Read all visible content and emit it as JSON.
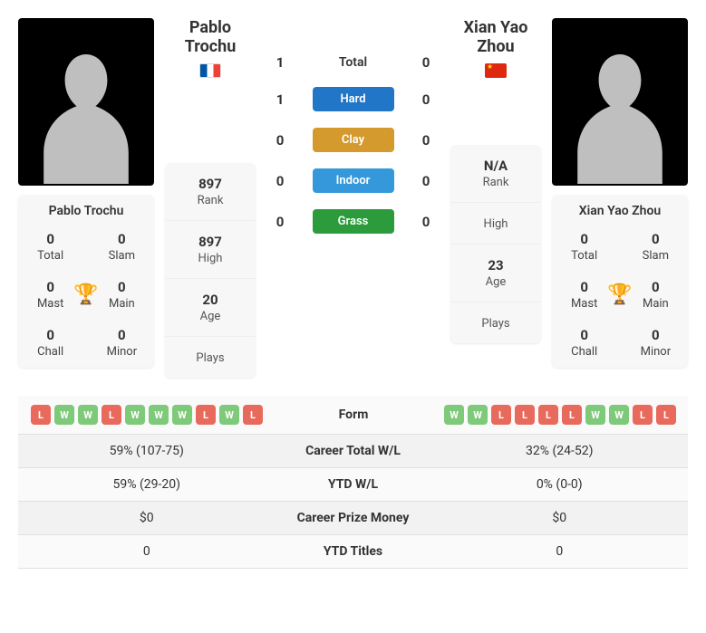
{
  "colors": {
    "hard": "#2176c7",
    "clay": "#d59a2e",
    "indoor": "#3498db",
    "grass": "#2b9b3c",
    "win": "#7fc97a",
    "loss": "#e86a5c",
    "trophy": "#2f7dc4"
  },
  "p1": {
    "name": "Pablo Trochu",
    "flag_class": "flag-fr",
    "titles": {
      "total": {
        "val": "0",
        "lbl": "Total"
      },
      "slam": {
        "val": "0",
        "lbl": "Slam"
      },
      "mast": {
        "val": "0",
        "lbl": "Mast"
      },
      "main": {
        "val": "0",
        "lbl": "Main"
      },
      "chall": {
        "val": "0",
        "lbl": "Chall"
      },
      "minor": {
        "val": "0",
        "lbl": "Minor"
      }
    },
    "stats": {
      "rank": {
        "val": "897",
        "lbl": "Rank"
      },
      "high": {
        "val": "897",
        "lbl": "High"
      },
      "age": {
        "val": "20",
        "lbl": "Age"
      },
      "plays": {
        "val": "",
        "lbl": "Plays"
      }
    },
    "form": [
      "L",
      "W",
      "W",
      "L",
      "W",
      "W",
      "W",
      "L",
      "W",
      "L"
    ],
    "career_wl": "59% (107-75)",
    "ytd_wl": "59% (29-20)",
    "prize": "$0",
    "ytd_titles": "0"
  },
  "p2": {
    "name": "Xian Yao Zhou",
    "flag_class": "flag-cn",
    "titles": {
      "total": {
        "val": "0",
        "lbl": "Total"
      },
      "slam": {
        "val": "0",
        "lbl": "Slam"
      },
      "mast": {
        "val": "0",
        "lbl": "Mast"
      },
      "main": {
        "val": "0",
        "lbl": "Main"
      },
      "chall": {
        "val": "0",
        "lbl": "Chall"
      },
      "minor": {
        "val": "0",
        "lbl": "Minor"
      }
    },
    "stats": {
      "rank": {
        "val": "N/A",
        "lbl": "Rank"
      },
      "high": {
        "val": "",
        "lbl": "High"
      },
      "age": {
        "val": "23",
        "lbl": "Age"
      },
      "plays": {
        "val": "",
        "lbl": "Plays"
      }
    },
    "form": [
      "W",
      "W",
      "L",
      "L",
      "L",
      "L",
      "W",
      "W",
      "L",
      "L"
    ],
    "career_wl": "32% (24-52)",
    "ytd_wl": "0% (0-0)",
    "prize": "$0",
    "ytd_titles": "0"
  },
  "h2h": [
    {
      "p1": "1",
      "label": "Total",
      "p2": "0",
      "badge": false
    },
    {
      "p1": "1",
      "label": "Hard",
      "p2": "0",
      "badge": true,
      "color_key": "hard"
    },
    {
      "p1": "0",
      "label": "Clay",
      "p2": "0",
      "badge": true,
      "color_key": "clay"
    },
    {
      "p1": "0",
      "label": "Indoor",
      "p2": "0",
      "badge": true,
      "color_key": "indoor"
    },
    {
      "p1": "0",
      "label": "Grass",
      "p2": "0",
      "badge": true,
      "color_key": "grass"
    }
  ],
  "comp_rows": [
    {
      "key": "form",
      "label": "Form"
    },
    {
      "key": "career_wl",
      "label": "Career Total W/L"
    },
    {
      "key": "ytd_wl",
      "label": "YTD W/L"
    },
    {
      "key": "prize",
      "label": "Career Prize Money"
    },
    {
      "key": "ytd_titles",
      "label": "YTD Titles"
    }
  ]
}
